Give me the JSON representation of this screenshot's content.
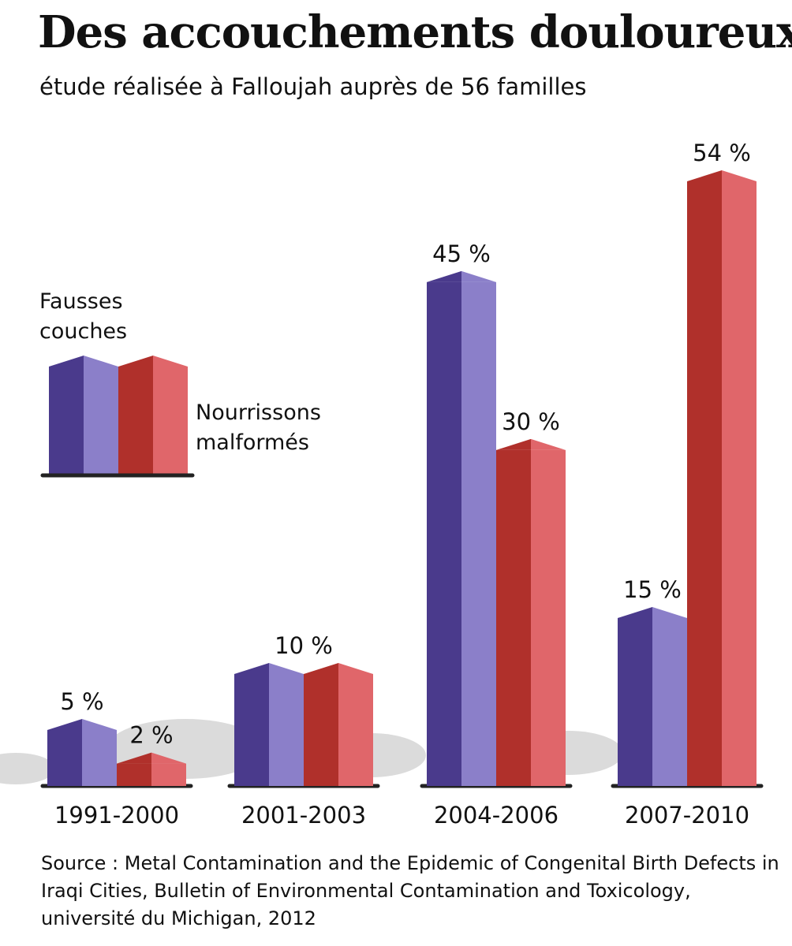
{
  "title": "Des accouchements douloureux",
  "subtitle": "étude réalisée à Falloujah auprès de 56 familles",
  "source": "Source : Metal Contamination and the Epidemic of Congenital Birth Defects in Iraqi Cities, Bulletin of Environmental Contamination and Toxicology, université du Michigan, 2012",
  "legend": {
    "series1_label": "Fausses\ncouches",
    "series2_label": "Nourrissons\nmalformés"
  },
  "colors": {
    "series1_dark": "#4a3a8c",
    "series1_light": "#8b7fc9",
    "series2_dark": "#b0302b",
    "series2_light": "#e0666a",
    "baseline": "#222222"
  },
  "chart_data": {
    "type": "bar",
    "categories": [
      "1991-2000",
      "2001-2003",
      "2004-2006",
      "2007-2010"
    ],
    "series": [
      {
        "name": "Fausses couches",
        "values": [
          5,
          10,
          45,
          15
        ],
        "labels": [
          "5 %",
          "10 %",
          "45 %",
          "15 %"
        ]
      },
      {
        "name": "Nourrissons malformés",
        "values": [
          2,
          10,
          30,
          54
        ],
        "labels": [
          "2 %",
          "",
          "30 %",
          "54 %"
        ]
      }
    ],
    "ylim": [
      0,
      54
    ],
    "grid": false,
    "legend_position": "left"
  }
}
